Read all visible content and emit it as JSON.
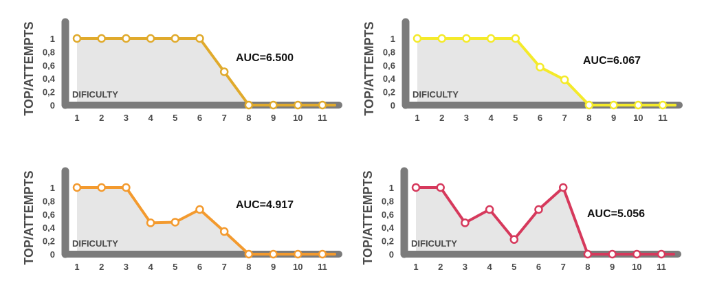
{
  "chart_data": [
    {
      "type": "line",
      "ylabel": "TOP/ATTEMPTS",
      "xlabel": "DIFICULTY",
      "annotation": "AUC=6.500",
      "color": "#e0aa2c",
      "x": [
        1,
        2,
        3,
        4,
        5,
        6,
        7,
        8,
        9,
        10,
        11
      ],
      "y": [
        1,
        1,
        1,
        1,
        1,
        1,
        0.5,
        0,
        0,
        0,
        0
      ],
      "yticks": [
        "0",
        "0,2",
        "0,4",
        "0,6",
        "0,8",
        "1"
      ],
      "xticks": [
        "1",
        "2",
        "3",
        "4",
        "5",
        "6",
        "7",
        "8",
        "9",
        "10",
        "11"
      ],
      "ylim": [
        0,
        1
      ]
    },
    {
      "type": "line",
      "ylabel": "TOP/ATTEMPTS",
      "xlabel": "DIFICULTY",
      "annotation": "AUC=6.067",
      "color": "#f4ea2a",
      "x": [
        1,
        2,
        3,
        4,
        5,
        6,
        7,
        8,
        9,
        10,
        11
      ],
      "y": [
        1,
        1,
        1,
        1,
        1,
        0.57,
        0.38,
        0,
        0,
        0,
        0
      ],
      "yticks": [
        "0",
        "0,2",
        "0,4",
        "0,6",
        "0,8",
        "1"
      ],
      "xticks": [
        "1",
        "2",
        "3",
        "4",
        "5",
        "6",
        "7",
        "8",
        "9",
        "10",
        "11"
      ],
      "ylim": [
        0,
        1
      ]
    },
    {
      "type": "line",
      "ylabel": "TOP/ATTEMPTS",
      "xlabel": "DIFICULTY",
      "annotation": "AUC=4.917",
      "color": "#f39a2e",
      "x": [
        1,
        2,
        3,
        4,
        5,
        6,
        7,
        8,
        9,
        10,
        11
      ],
      "y": [
        1,
        1,
        1,
        0.47,
        0.48,
        0.67,
        0.34,
        0,
        0,
        0,
        0
      ],
      "yticks": [
        "0",
        "0,2",
        "0,4",
        "0,6",
        "0,8",
        "1"
      ],
      "xticks": [
        "1",
        "2",
        "3",
        "4",
        "5",
        "6",
        "7",
        "8",
        "9",
        "10",
        "11"
      ],
      "ylim": [
        0,
        1
      ]
    },
    {
      "type": "line",
      "ylabel": "TOP/ATTEMPTS",
      "xlabel": "DIFICULTY",
      "annotation": "AUC=5.056",
      "color": "#d6395c",
      "x": [
        1,
        2,
        3,
        4,
        5,
        6,
        7,
        8,
        9,
        10,
        11
      ],
      "y": [
        1,
        1,
        0.47,
        0.67,
        0.22,
        0.67,
        1,
        0,
        0,
        0,
        0
      ],
      "yticks": [
        "0",
        "0,2",
        "0,4",
        "0,6",
        "0,8",
        "1"
      ],
      "xticks": [
        "1",
        "2",
        "3",
        "4",
        "5",
        "6",
        "7",
        "8",
        "9",
        "10",
        "11"
      ],
      "ylim": [
        0,
        1
      ]
    }
  ]
}
